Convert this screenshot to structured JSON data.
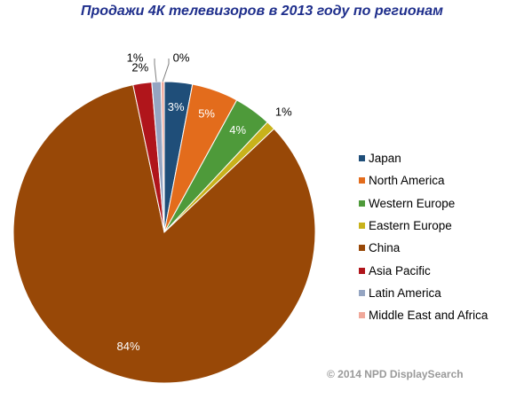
{
  "chart_data": {
    "type": "pie",
    "title": "Продажи 4К телевизоров в 2013 году по регионам",
    "categories": [
      "Japan",
      "North America",
      "Western Europe",
      "Eastern Europe",
      "China",
      "Asia Pacific",
      "Latin America",
      "Middle East and Africa"
    ],
    "values": [
      3,
      5,
      4,
      1,
      84,
      2,
      1,
      0
    ],
    "data_labels": [
      "3%",
      "5%",
      "4%",
      "1%",
      "84%",
      "2%",
      "1%",
      "0%"
    ],
    "colors": [
      "#1f4e79",
      "#e36c1c",
      "#4e9a3a",
      "#c8b21b",
      "#984807",
      "#b0151b",
      "#95a5c2",
      "#f0a89a"
    ],
    "legend": "right"
  },
  "footer": {
    "copyright": "© 2014 NPD DisplaySearch"
  }
}
